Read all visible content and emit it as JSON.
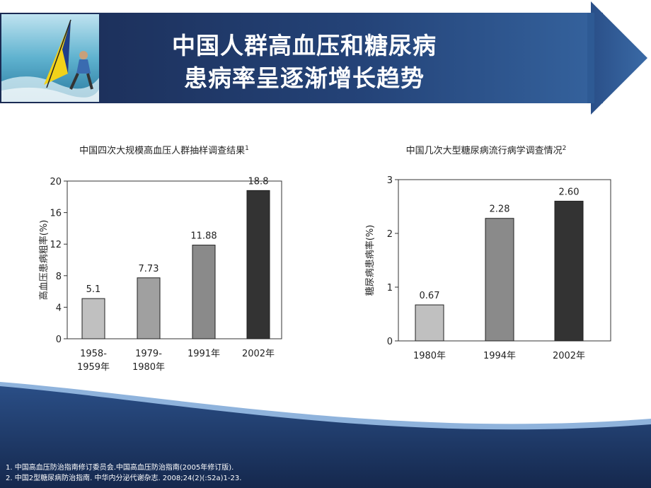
{
  "title": {
    "line1": "中国人群高血压和糖尿病",
    "line2": "患病率呈逐渐增长趋势"
  },
  "colors": {
    "banner_dark": "#1a2a52",
    "banner_light": "#35639e",
    "arrow": "#2c5592",
    "footer": "#1b3561"
  },
  "banner_image": "windsurfer-photo",
  "chart_data": [
    {
      "type": "bar",
      "title": "中国四次大规模高血压人群抽样调查结果",
      "title_sup": "1",
      "ylabel": "高血压患病粗率(%)",
      "xlabel": "",
      "ylim": [
        0,
        20
      ],
      "yticks": [
        0,
        4,
        8,
        12,
        16,
        20
      ],
      "categories": [
        [
          "1958-",
          "1959年"
        ],
        [
          "1979-",
          "1980年"
        ],
        [
          "1991年"
        ],
        [
          "2002年"
        ]
      ],
      "values": [
        5.1,
        7.73,
        11.88,
        18.8
      ],
      "value_labels": [
        "5.1",
        "7.73",
        "11.88",
        "18.8"
      ],
      "bar_colors": [
        "#c0c0c0",
        "#a0a0a0",
        "#8a8a8a",
        "#333333"
      ],
      "grid": false
    },
    {
      "type": "bar",
      "title": "中国几次大型糖尿病流行病学调查情况",
      "title_sup": "2",
      "ylabel": "糖尿病患病率(%)",
      "xlabel": "",
      "ylim": [
        0,
        3
      ],
      "yticks": [
        0,
        1,
        2,
        3
      ],
      "categories": [
        [
          "1980年"
        ],
        [
          "1994年"
        ],
        [
          "2002年"
        ]
      ],
      "values": [
        0.67,
        2.28,
        2.6
      ],
      "value_labels": [
        "0.67",
        "2.28",
        "2.60"
      ],
      "bar_colors": [
        "#c0c0c0",
        "#8a8a8a",
        "#333333"
      ],
      "grid": false
    }
  ],
  "references": [
    "1. 中国高血压防治指南修订委员会.中国高血压防治指南(2005年修订版).",
    "2. 中国2型糖尿病防治指南. 中华内分泌代谢杂志. 2008;24(2)(:S2a)1-23."
  ]
}
